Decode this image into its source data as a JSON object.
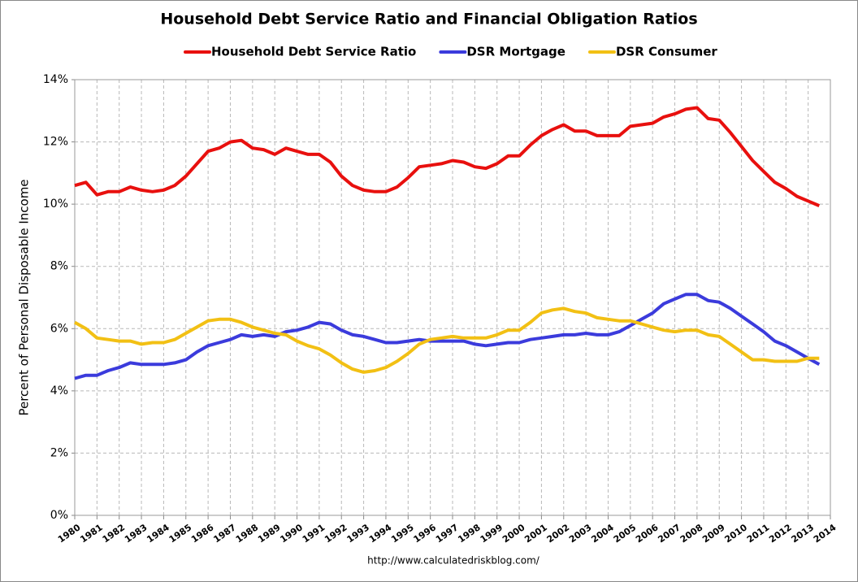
{
  "chart_data": {
    "type": "line",
    "title": "Household Debt Service Ratio and Financial Obligation Ratios",
    "y_label": "Percent of Personal Disposable Income",
    "source": "http://www.calculatedriskblog.com/",
    "x": [
      1980,
      1980.5,
      1981,
      1981.5,
      1982,
      1982.5,
      1983,
      1983.5,
      1984,
      1984.5,
      1985,
      1985.5,
      1986,
      1986.5,
      1987,
      1987.5,
      1988,
      1988.5,
      1989,
      1989.5,
      1990,
      1990.5,
      1991,
      1991.5,
      1992,
      1992.5,
      1993,
      1993.5,
      1994,
      1994.5,
      1995,
      1995.5,
      1996,
      1996.5,
      1997,
      1997.5,
      1998,
      1998.5,
      1999,
      1999.5,
      2000,
      2000.5,
      2001,
      2001.5,
      2002,
      2002.5,
      2003,
      2003.5,
      2004,
      2004.5,
      2005,
      2005.5,
      2006,
      2006.5,
      2007,
      2007.5,
      2008,
      2008.5,
      2009,
      2009.5,
      2010,
      2010.5,
      2011,
      2011.5,
      2012,
      2012.5,
      2013,
      2013.5
    ],
    "series": [
      {
        "name": "Household Debt Service Ratio",
        "color": "#e8100e",
        "values": [
          10.6,
          10.7,
          10.3,
          10.4,
          10.4,
          10.55,
          10.45,
          10.4,
          10.45,
          10.6,
          10.9,
          11.3,
          11.7,
          11.8,
          12.0,
          12.05,
          11.8,
          11.75,
          11.6,
          11.8,
          11.7,
          11.6,
          11.6,
          11.35,
          10.9,
          10.6,
          10.45,
          10.4,
          10.4,
          10.55,
          10.85,
          11.2,
          11.25,
          11.3,
          11.4,
          11.35,
          11.2,
          11.15,
          11.3,
          11.55,
          11.55,
          11.9,
          12.2,
          12.4,
          12.55,
          12.35,
          12.35,
          12.2,
          12.2,
          12.2,
          12.5,
          12.55,
          12.6,
          12.8,
          12.9,
          13.05,
          13.1,
          12.75,
          12.7,
          12.3,
          11.85,
          11.4,
          11.05,
          10.7,
          10.5,
          10.25,
          10.1,
          9.95
        ]
      },
      {
        "name": "DSR Mortgage",
        "color": "#3b3bdc",
        "values": [
          4.4,
          4.5,
          4.5,
          4.65,
          4.75,
          4.9,
          4.85,
          4.85,
          4.85,
          4.9,
          5.0,
          5.25,
          5.45,
          5.55,
          5.65,
          5.8,
          5.75,
          5.8,
          5.75,
          5.9,
          5.95,
          6.05,
          6.2,
          6.15,
          5.95,
          5.8,
          5.75,
          5.65,
          5.55,
          5.55,
          5.6,
          5.65,
          5.6,
          5.6,
          5.6,
          5.6,
          5.5,
          5.45,
          5.5,
          5.55,
          5.55,
          5.65,
          5.7,
          5.75,
          5.8,
          5.8,
          5.85,
          5.8,
          5.8,
          5.9,
          6.1,
          6.3,
          6.5,
          6.8,
          6.95,
          7.1,
          7.1,
          6.9,
          6.85,
          6.65,
          6.4,
          6.15,
          5.9,
          5.6,
          5.45,
          5.25,
          5.05,
          4.85
        ]
      },
      {
        "name": "DSR Consumer",
        "color": "#f2c014",
        "values": [
          6.2,
          6.0,
          5.7,
          5.65,
          5.6,
          5.6,
          5.5,
          5.55,
          5.55,
          5.65,
          5.85,
          6.05,
          6.25,
          6.3,
          6.3,
          6.2,
          6.05,
          5.95,
          5.85,
          5.8,
          5.6,
          5.45,
          5.35,
          5.15,
          4.9,
          4.7,
          4.6,
          4.65,
          4.75,
          4.95,
          5.2,
          5.5,
          5.65,
          5.7,
          5.75,
          5.7,
          5.7,
          5.7,
          5.8,
          5.95,
          5.95,
          6.2,
          6.5,
          6.6,
          6.65,
          6.55,
          6.5,
          6.35,
          6.3,
          6.25,
          6.25,
          6.15,
          6.05,
          5.95,
          5.9,
          5.95,
          5.95,
          5.8,
          5.75,
          5.5,
          5.25,
          5.0,
          5.0,
          4.95,
          4.95,
          4.95,
          5.05,
          5.05
        ]
      }
    ],
    "xlim": [
      1980,
      2014
    ],
    "xticks": [
      1980,
      1981,
      1982,
      1983,
      1984,
      1985,
      1986,
      1987,
      1988,
      1989,
      1990,
      1991,
      1992,
      1993,
      1994,
      1995,
      1996,
      1997,
      1998,
      1999,
      2000,
      2001,
      2002,
      2003,
      2004,
      2005,
      2006,
      2007,
      2008,
      2009,
      2010,
      2011,
      2012,
      2013,
      2014
    ],
    "ylim": [
      0,
      14
    ],
    "yticks": [
      {
        "value": 0,
        "label": "0%"
      },
      {
        "value": 2,
        "label": "2%"
      },
      {
        "value": 4,
        "label": "4%"
      },
      {
        "value": 6,
        "label": "6%"
      },
      {
        "value": 8,
        "label": "8%"
      },
      {
        "value": 10,
        "label": "10%"
      },
      {
        "value": 12,
        "label": "12%"
      },
      {
        "value": 14,
        "label": "14%"
      }
    ],
    "grid": true,
    "legend": "top"
  }
}
